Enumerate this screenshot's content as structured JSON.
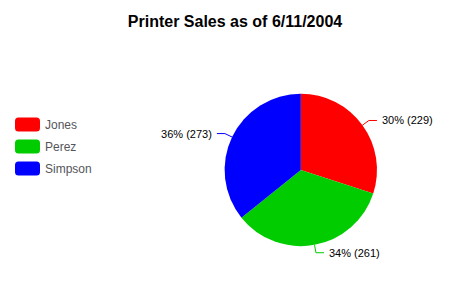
{
  "chart_data": {
    "type": "pie",
    "title": "Printer Sales as of 6/11/2004",
    "categories": [
      "Jones",
      "Perez",
      "Simpson"
    ],
    "values": [
      229,
      261,
      273
    ],
    "value_labels": [
      "30% (229)",
      "34% (261)",
      "36% (273)"
    ],
    "colors": [
      "#ff0000",
      "#00cc00",
      "#0000ff"
    ],
    "data_labels": true,
    "legend": "left"
  }
}
